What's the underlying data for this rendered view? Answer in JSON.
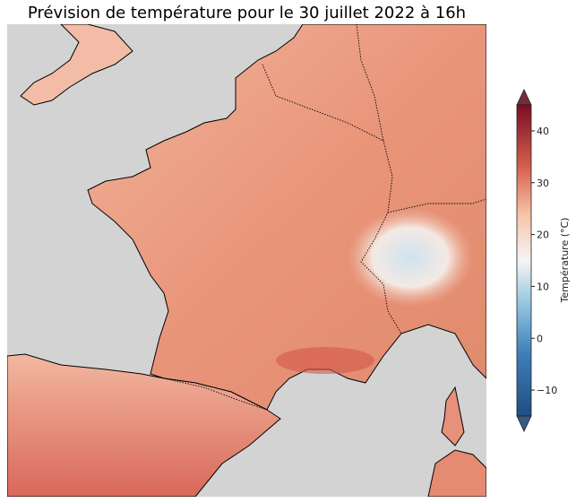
{
  "title": "Prévision de température pour le 30 juillet 2022 à 16h",
  "colorbar": {
    "label": "Température (°C)",
    "ticks": [
      "40",
      "30",
      "20",
      "10",
      "0",
      "−10"
    ],
    "tick_values": [
      40,
      30,
      20,
      10,
      0,
      -10
    ],
    "range": [
      -15,
      45
    ],
    "extend": "both",
    "colormap": "RdBu_r",
    "colors": {
      "min": "#1f4e82",
      "low": "#4a90c2",
      "mid": "#f5f5f5",
      "high": "#e0765c",
      "max": "#7a0d24"
    }
  },
  "map": {
    "ocean_color": "#d3d3d3",
    "land_base_color": "#eb9e80",
    "borders": "dotted",
    "coastlines": "solid"
  }
}
